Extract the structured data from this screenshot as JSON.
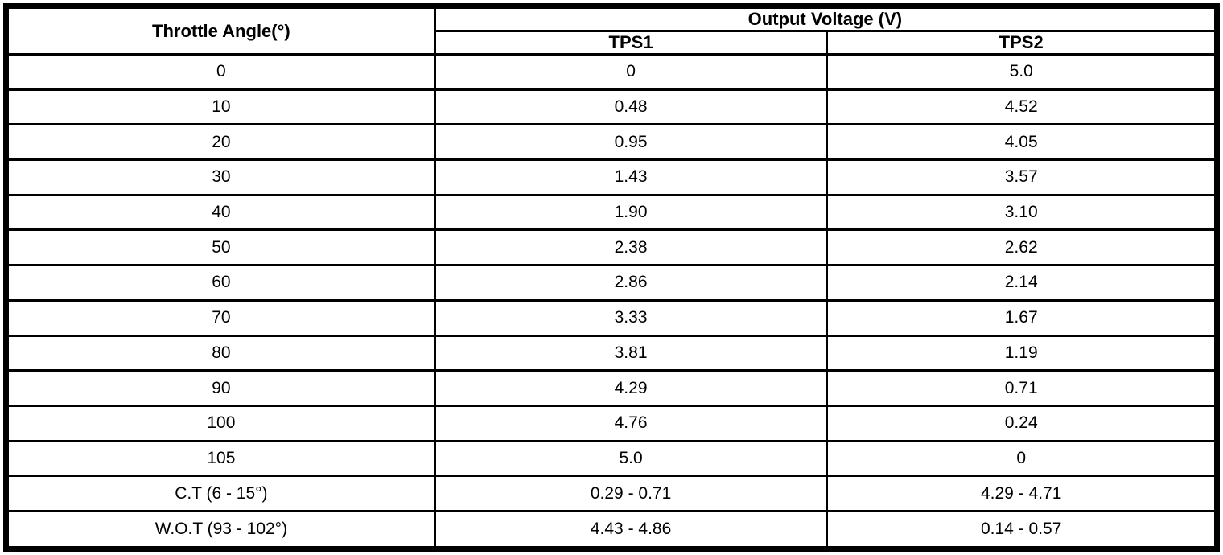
{
  "colors": {
    "border": "#000000",
    "background": "#ffffff",
    "text": "#000000"
  },
  "table": {
    "header": {
      "throttle_angle": "Throttle Angle(°)",
      "output_voltage": "Output Voltage (V)",
      "tps1": "TPS1",
      "tps2": "TPS2"
    },
    "rows": [
      {
        "angle": "0",
        "tps1": "0",
        "tps2": "5.0"
      },
      {
        "angle": "10",
        "tps1": "0.48",
        "tps2": "4.52"
      },
      {
        "angle": "20",
        "tps1": "0.95",
        "tps2": "4.05"
      },
      {
        "angle": "30",
        "tps1": "1.43",
        "tps2": "3.57"
      },
      {
        "angle": "40",
        "tps1": "1.90",
        "tps2": "3.10"
      },
      {
        "angle": "50",
        "tps1": "2.38",
        "tps2": "2.62"
      },
      {
        "angle": "60",
        "tps1": "2.86",
        "tps2": "2.14"
      },
      {
        "angle": "70",
        "tps1": "3.33",
        "tps2": "1.67"
      },
      {
        "angle": "80",
        "tps1": "3.81",
        "tps2": "1.19"
      },
      {
        "angle": "90",
        "tps1": "4.29",
        "tps2": "0.71"
      },
      {
        "angle": "100",
        "tps1": "4.76",
        "tps2": "0.24"
      },
      {
        "angle": "105",
        "tps1": "5.0",
        "tps2": "0"
      },
      {
        "angle": "C.T (6 - 15°)",
        "tps1": "0.29 - 0.71",
        "tps2": "4.29 - 4.71"
      },
      {
        "angle": "W.O.T (93 - 102°)",
        "tps1": "4.43 - 4.86",
        "tps2": "0.14 - 0.57"
      }
    ]
  }
}
